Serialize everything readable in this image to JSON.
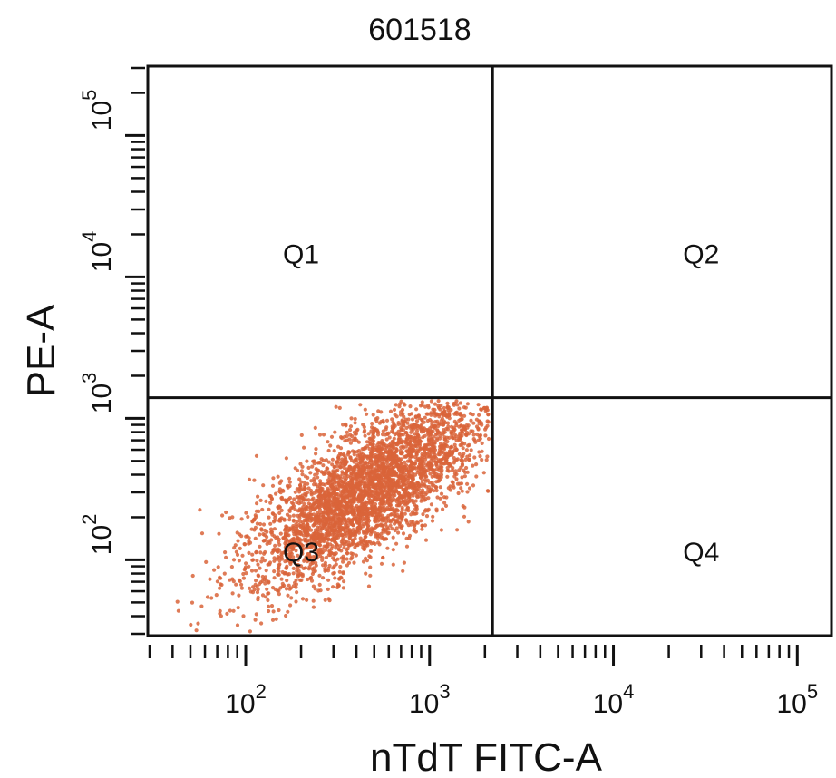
{
  "chart_data": {
    "type": "scatter",
    "title": "601518",
    "xlabel": "nTdT FITC-A",
    "ylabel": "PE-A",
    "x_scale": "log",
    "y_scale": "log",
    "xlim": [
      30,
      150000
    ],
    "ylim": [
      30,
      300000
    ],
    "x_ticks": [
      {
        "value": 100,
        "base": "10",
        "exp": "2"
      },
      {
        "value": 1000,
        "base": "10",
        "exp": "3"
      },
      {
        "value": 10000,
        "base": "10",
        "exp": "4"
      },
      {
        "value": 100000,
        "base": "10",
        "exp": "5"
      }
    ],
    "y_ticks": [
      {
        "value": 100,
        "base": "10",
        "exp": "2"
      },
      {
        "value": 1000,
        "base": "10",
        "exp": "3"
      },
      {
        "value": 10000,
        "base": "10",
        "exp": "4"
      },
      {
        "value": 100000,
        "base": "10",
        "exp": "5"
      }
    ],
    "quadrant_gates": {
      "x": 2200,
      "y": 1400
    },
    "quadrants": [
      {
        "label": "Q1",
        "x": 200,
        "y": 14000
      },
      {
        "label": "Q2",
        "x": 30000,
        "y": 14000
      },
      {
        "label": "Q3",
        "x": 200,
        "y": 110
      },
      {
        "label": "Q4",
        "x": 30000,
        "y": 110
      }
    ],
    "point_color": "#d9643a",
    "series": [
      {
        "population": "Q3",
        "count": 3800,
        "center": [
          460,
          310
        ],
        "log10_sd": [
          0.32,
          0.34
        ],
        "correlation": 0.75
      }
    ],
    "grid": false,
    "legend": "none"
  }
}
